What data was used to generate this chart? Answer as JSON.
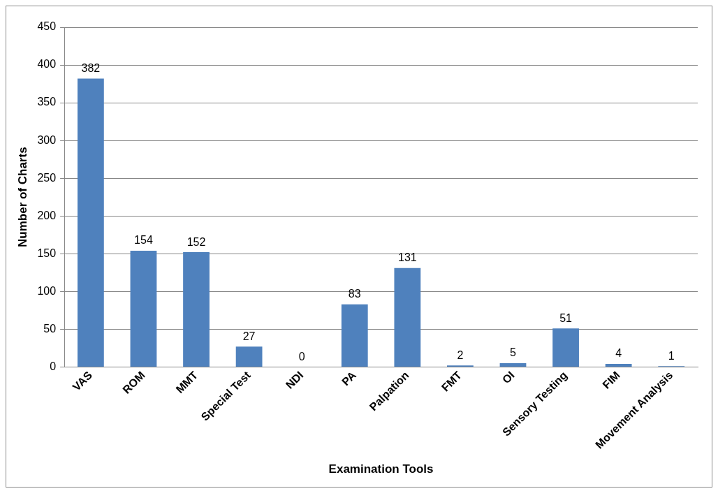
{
  "chart_data": {
    "type": "bar",
    "xlabel": "Examination Tools",
    "ylabel": "Number of Charts",
    "categories": [
      "VAS",
      "ROM",
      "MMT",
      "Special Test",
      "NDI",
      "PA",
      "Palpation",
      "FMT",
      "OI",
      "Sensory Testing",
      "FIM",
      "Movement Analysis"
    ],
    "values": [
      382,
      154,
      152,
      27,
      0,
      83,
      131,
      2,
      5,
      51,
      4,
      1
    ],
    "color": "#4f81bd",
    "ylim": [
      0,
      450
    ],
    "yticks": [
      0,
      50,
      100,
      150,
      200,
      250,
      300,
      350,
      400,
      450
    ],
    "grid": "y",
    "legend": false,
    "data_labels": true
  }
}
